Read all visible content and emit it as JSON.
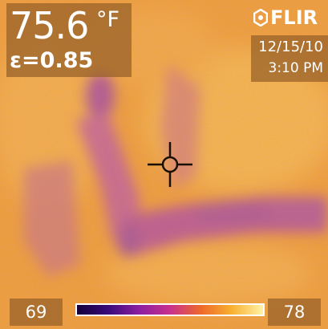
{
  "reading": {
    "temperature": "75.6",
    "unit": "°F",
    "emissivity": "ε=0.85"
  },
  "brand": {
    "name": "FLIR",
    "mark_icon": "flir-logo-icon"
  },
  "datetime": {
    "date": "12/15/10",
    "time": "3:10 PM"
  },
  "spot_meter": {
    "icon": "crosshair-icon"
  },
  "color_scale": {
    "min": "69",
    "max": "78",
    "palette": [
      "#14003a",
      "#3a0a7a",
      "#8a1ea0",
      "#c8308c",
      "#ee6a2a",
      "#f8b030",
      "#fff2a8"
    ]
  },
  "colors": {
    "background": "#f0a030",
    "cold": "#9a4aa8",
    "warm": "#f8b848"
  }
}
